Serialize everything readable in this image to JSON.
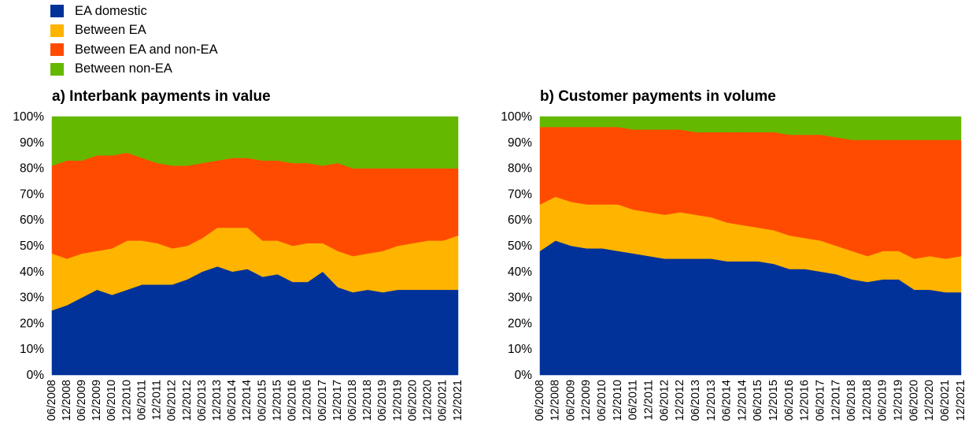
{
  "legend": [
    {
      "label": "EA domestic",
      "color": "#003299"
    },
    {
      "label": "Between EA",
      "color": "#FFB400"
    },
    {
      "label": "Between EA and non-EA",
      "color": "#FF4B00"
    },
    {
      "label": "Between non-EA",
      "color": "#65B800"
    }
  ],
  "chart_data": [
    {
      "type": "area",
      "stacked": true,
      "title": "a) Interbank payments in value",
      "xlabel": "",
      "ylabel": "",
      "ylim": [
        0,
        100
      ],
      "yticks": [
        "0%",
        "10%",
        "20%",
        "30%",
        "40%",
        "50%",
        "60%",
        "70%",
        "80%",
        "90%",
        "100%"
      ],
      "x": [
        "06/2008",
        "12/2008",
        "06/2009",
        "12/2009",
        "06/2010",
        "12/2010",
        "06/2011",
        "12/2011",
        "06/2012",
        "12/2012",
        "06/2013",
        "12/2013",
        "06/2014",
        "12/2014",
        "06/2015",
        "12/2015",
        "06/2016",
        "12/2016",
        "06/2017",
        "12/2017",
        "06/2018",
        "12/2018",
        "06/2019",
        "12/2019",
        "06/2020",
        "12/2020",
        "06/2021",
        "12/2021"
      ],
      "series": [
        {
          "name": "EA domestic",
          "color": "#003299",
          "values": [
            25,
            27,
            30,
            33,
            31,
            33,
            35,
            35,
            35,
            37,
            40,
            42,
            40,
            41,
            38,
            39,
            36,
            36,
            40,
            34,
            32,
            33,
            32,
            33,
            33,
            33,
            33,
            33
          ]
        },
        {
          "name": "Between EA",
          "color": "#FFB400",
          "values": [
            22,
            18,
            17,
            15,
            18,
            19,
            17,
            16,
            14,
            13,
            13,
            15,
            17,
            16,
            14,
            13,
            14,
            15,
            11,
            14,
            14,
            14,
            16,
            17,
            18,
            19,
            19,
            21
          ]
        },
        {
          "name": "Between EA and non-EA",
          "color": "#FF4B00",
          "values": [
            34,
            38,
            36,
            37,
            36,
            34,
            32,
            31,
            32,
            31,
            29,
            26,
            27,
            27,
            31,
            31,
            32,
            31,
            30,
            34,
            34,
            33,
            32,
            30,
            29,
            28,
            28,
            26
          ]
        },
        {
          "name": "Between non-EA",
          "color": "#65B800",
          "values": [
            19,
            17,
            17,
            15,
            15,
            14,
            16,
            18,
            19,
            19,
            18,
            17,
            16,
            16,
            17,
            17,
            18,
            18,
            19,
            18,
            20,
            20,
            20,
            20,
            20,
            20,
            20,
            20
          ]
        }
      ]
    },
    {
      "type": "area",
      "stacked": true,
      "title": "b) Customer payments in volume",
      "xlabel": "",
      "ylabel": "",
      "ylim": [
        0,
        100
      ],
      "yticks": [
        "0%",
        "10%",
        "20%",
        "30%",
        "40%",
        "50%",
        "60%",
        "70%",
        "80%",
        "90%",
        "100%"
      ],
      "x": [
        "06/2008",
        "12/2008",
        "06/2009",
        "12/2009",
        "06/2010",
        "12/2010",
        "06/2011",
        "12/2011",
        "06/2012",
        "12/2012",
        "06/2013",
        "12/2013",
        "06/2014",
        "12/2014",
        "06/2015",
        "12/2015",
        "06/2016",
        "12/2016",
        "06/2017",
        "12/2017",
        "06/2018",
        "12/2018",
        "06/2019",
        "12/2019",
        "06/2020",
        "12/2020",
        "06/2021",
        "12/2021"
      ],
      "series": [
        {
          "name": "EA domestic",
          "color": "#003299",
          "values": [
            48,
            52,
            50,
            49,
            49,
            48,
            47,
            46,
            45,
            45,
            45,
            45,
            44,
            44,
            44,
            43,
            41,
            41,
            40,
            39,
            37,
            36,
            37,
            37,
            33,
            33,
            32,
            32
          ]
        },
        {
          "name": "Between EA",
          "color": "#FFB400",
          "values": [
            18,
            17,
            17,
            17,
            17,
            18,
            17,
            17,
            17,
            18,
            17,
            16,
            15,
            14,
            13,
            13,
            13,
            12,
            12,
            11,
            11,
            10,
            11,
            11,
            12,
            13,
            13,
            14
          ]
        },
        {
          "name": "Between EA and non-EA",
          "color": "#FF4B00",
          "values": [
            30,
            27,
            29,
            30,
            30,
            30,
            31,
            32,
            33,
            32,
            32,
            33,
            35,
            36,
            37,
            38,
            39,
            40,
            41,
            42,
            43,
            45,
            43,
            43,
            46,
            45,
            46,
            45
          ]
        },
        {
          "name": "Between non-EA",
          "color": "#65B800",
          "values": [
            4,
            4,
            4,
            4,
            4,
            4,
            5,
            5,
            5,
            5,
            6,
            6,
            6,
            6,
            6,
            6,
            7,
            7,
            7,
            8,
            9,
            9,
            9,
            9,
            9,
            9,
            9,
            9
          ]
        }
      ]
    }
  ]
}
